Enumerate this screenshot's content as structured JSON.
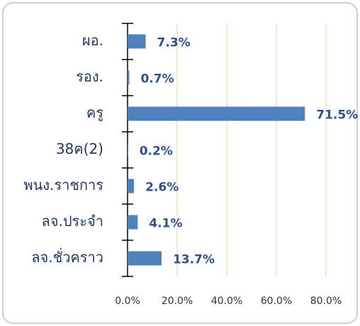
{
  "chart_data": {
    "type": "barh",
    "categories": [
      "ผอ.",
      "รอง.",
      "ครู",
      "38ค(2)",
      "พนง.ราชการ",
      "ลจ.ประจำ",
      "ลจ.ชั่วคราว"
    ],
    "values": [
      7.3,
      0.7,
      71.5,
      0.2,
      2.6,
      4.1,
      13.7
    ],
    "value_labels": [
      "7.3%",
      "0.7%",
      "71.5%",
      "0.2%",
      "2.6%",
      "4.1%",
      "13.7%"
    ],
    "color": "#4f81bd",
    "xlim": [
      0,
      90
    ],
    "xticks": [
      {
        "value": 0,
        "label": "0.0%"
      },
      {
        "value": 20,
        "label": "20.0%"
      },
      {
        "value": 40,
        "label": "40.0%"
      },
      {
        "value": 60,
        "label": "60.0%"
      },
      {
        "value": 80,
        "label": "80.0%"
      }
    ],
    "grid": true
  }
}
